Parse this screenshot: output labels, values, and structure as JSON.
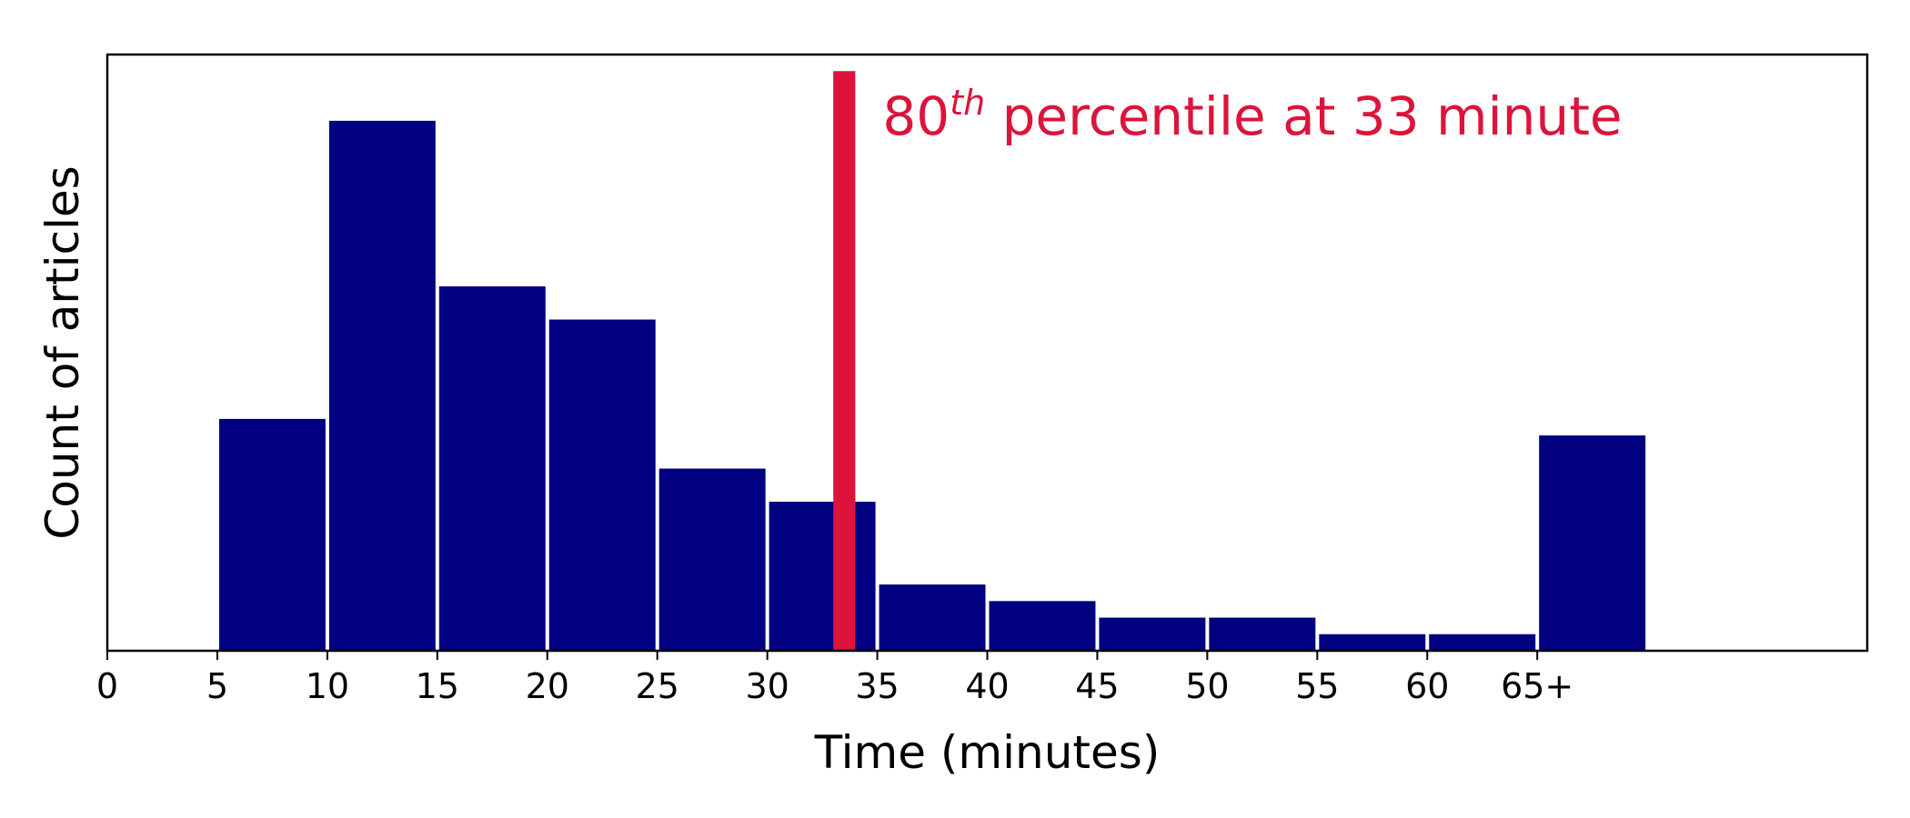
{
  "chart_data": {
    "type": "bar",
    "xlabel": "Time (minutes)",
    "ylabel": "Count of articles",
    "x_ticks": [
      "0",
      "5",
      "10",
      "15",
      "20",
      "25",
      "30",
      "35",
      "40",
      "45",
      "50",
      "55",
      "60",
      "65+"
    ],
    "xlim": [
      0,
      80
    ],
    "ylim": [
      0,
      36
    ],
    "y_ticks_shown": false,
    "grid": false,
    "bins": [
      {
        "start": 5,
        "end": 10,
        "value": 14
      },
      {
        "start": 10,
        "end": 15,
        "value": 32
      },
      {
        "start": 15,
        "end": 20,
        "value": 22
      },
      {
        "start": 20,
        "end": 25,
        "value": 20
      },
      {
        "start": 25,
        "end": 30,
        "value": 11
      },
      {
        "start": 30,
        "end": 35,
        "value": 9
      },
      {
        "start": 35,
        "end": 40,
        "value": 4
      },
      {
        "start": 40,
        "end": 45,
        "value": 3
      },
      {
        "start": 45,
        "end": 50,
        "value": 2
      },
      {
        "start": 50,
        "end": 55,
        "value": 2
      },
      {
        "start": 55,
        "end": 60,
        "value": 1
      },
      {
        "start": 60,
        "end": 65,
        "value": 1
      },
      {
        "start": 65,
        "end": 70,
        "value": 13
      }
    ],
    "bar_color": "#000080",
    "percentile_marker": {
      "x_start": 33,
      "x_end": 34,
      "height": 35,
      "color": "#dc143c"
    },
    "annotation": {
      "prefix": "80",
      "superscript": "th",
      "suffix": " percentile at 33 minute",
      "color": "#dc143c"
    }
  }
}
